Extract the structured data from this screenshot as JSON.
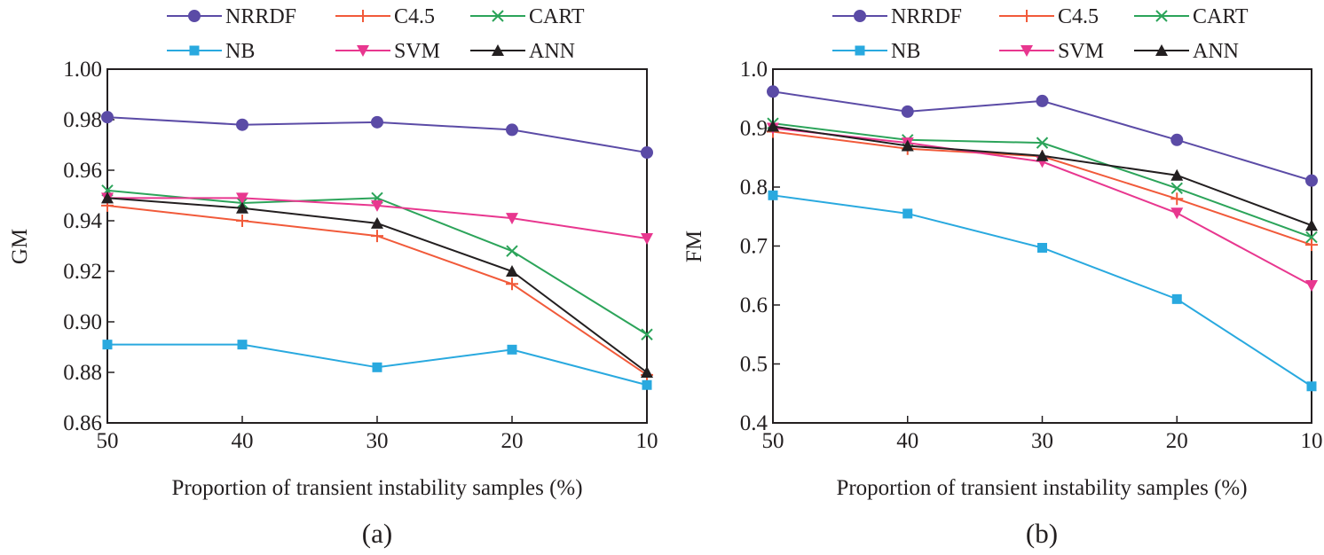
{
  "chart_data": [
    {
      "type": "line",
      "panel": "a",
      "caption": "(a)",
      "xlabel": "Proportion of transient instability samples (%)",
      "ylabel": "GM",
      "x": [
        50,
        40,
        30,
        20,
        10
      ],
      "x_tick_labels": [
        "50",
        "40",
        "30",
        "20",
        "10"
      ],
      "xlim": [
        50,
        10
      ],
      "ylim": [
        0.86,
        1.0
      ],
      "y_ticks": [
        0.86,
        0.88,
        0.9,
        0.92,
        0.94,
        0.96,
        0.98,
        1.0
      ],
      "y_tick_labels": [
        "0.86",
        "0.88",
        "0.90",
        "0.92",
        "0.94",
        "0.96",
        "0.98",
        "1.00"
      ],
      "grid": false,
      "legend_position": "top",
      "series": [
        {
          "name": "NRRDF",
          "color": "#5b4ba6",
          "marker": "circle",
          "values": [
            0.981,
            0.978,
            0.979,
            0.976,
            0.967
          ]
        },
        {
          "name": "C4.5",
          "color": "#f15a3a",
          "marker": "plus",
          "values": [
            0.946,
            0.94,
            0.934,
            0.915,
            0.879
          ]
        },
        {
          "name": "CART",
          "color": "#2ca45a",
          "marker": "x",
          "values": [
            0.952,
            0.947,
            0.949,
            0.928,
            0.895
          ]
        },
        {
          "name": "NB",
          "color": "#29a9df",
          "marker": "square",
          "values": [
            0.891,
            0.891,
            0.882,
            0.889,
            0.875
          ]
        },
        {
          "name": "SVM",
          "color": "#e8378f",
          "marker": "tri-down",
          "values": [
            0.949,
            0.949,
            0.946,
            0.941,
            0.933
          ]
        },
        {
          "name": "ANN",
          "color": "#231f20",
          "marker": "tri-up",
          "values": [
            0.949,
            0.945,
            0.939,
            0.92,
            0.88
          ]
        }
      ]
    },
    {
      "type": "line",
      "panel": "b",
      "caption": "(b)",
      "xlabel": "Proportion of transient instability samples (%)",
      "ylabel": "FM",
      "x": [
        50,
        40,
        30,
        20,
        10
      ],
      "x_tick_labels": [
        "50",
        "40",
        "30",
        "20",
        "10"
      ],
      "xlim": [
        50,
        10
      ],
      "ylim": [
        0.4,
        1.0
      ],
      "y_ticks": [
        0.4,
        0.5,
        0.6,
        0.7,
        0.8,
        0.9,
        1.0
      ],
      "y_tick_labels": [
        "0.4",
        "0.5",
        "0.6",
        "0.7",
        "0.8",
        "0.9",
        "1.0"
      ],
      "grid": false,
      "legend_position": "top",
      "series": [
        {
          "name": "NRRDF",
          "color": "#5b4ba6",
          "marker": "circle",
          "values": [
            0.962,
            0.928,
            0.946,
            0.88,
            0.811
          ]
        },
        {
          "name": "C4.5",
          "color": "#f15a3a",
          "marker": "plus",
          "values": [
            0.894,
            0.865,
            0.852,
            0.78,
            0.702
          ]
        },
        {
          "name": "CART",
          "color": "#2ca45a",
          "marker": "x",
          "values": [
            0.908,
            0.88,
            0.875,
            0.798,
            0.715
          ]
        },
        {
          "name": "NB",
          "color": "#29a9df",
          "marker": "square",
          "values": [
            0.786,
            0.755,
            0.697,
            0.61,
            0.462
          ]
        },
        {
          "name": "SVM",
          "color": "#e8378f",
          "marker": "tri-down",
          "values": [
            0.9,
            0.875,
            0.843,
            0.756,
            0.633
          ]
        },
        {
          "name": "ANN",
          "color": "#231f20",
          "marker": "tri-up",
          "values": [
            0.903,
            0.87,
            0.853,
            0.82,
            0.735
          ]
        }
      ]
    }
  ]
}
